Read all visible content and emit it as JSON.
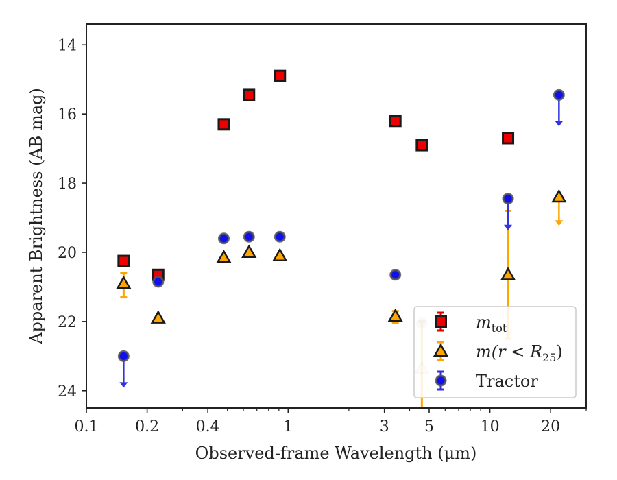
{
  "chart_data": {
    "type": "scatter",
    "title": "",
    "xlabel": "Observed-frame Wavelength (μm)",
    "ylabel": "Apparent Brightness (AB mag)",
    "xscale": "log",
    "xlim": [
      0.1,
      30
    ],
    "ylim": [
      24.5,
      13.4
    ],
    "y_inverted": true,
    "grid": false,
    "legend_position": "lower-right",
    "xticks": [
      {
        "value": 0.1,
        "label": "0.1"
      },
      {
        "value": 0.2,
        "label": "0.2"
      },
      {
        "value": 0.4,
        "label": "0.4"
      },
      {
        "value": 1,
        "label": "1"
      },
      {
        "value": 3,
        "label": "3"
      },
      {
        "value": 5,
        "label": "5"
      },
      {
        "value": 10,
        "label": "10"
      },
      {
        "value": 20,
        "label": "20"
      }
    ],
    "yticks": [
      {
        "value": 14,
        "label": "14"
      },
      {
        "value": 16,
        "label": "16"
      },
      {
        "value": 18,
        "label": "18"
      },
      {
        "value": 20,
        "label": "20"
      },
      {
        "value": 22,
        "label": "22"
      },
      {
        "value": 24,
        "label": "24"
      }
    ],
    "series": [
      {
        "name": "m_tot",
        "legend_label": {
          "base": "m",
          "sub": "tot"
        },
        "marker": "square",
        "fill": "#ee0000",
        "errcolor": "#dd0000",
        "points": [
          {
            "x": 0.153,
            "y": 20.25
          },
          {
            "x": 0.227,
            "y": 20.65
          },
          {
            "x": 0.48,
            "y": 16.3
          },
          {
            "x": 0.64,
            "y": 15.45
          },
          {
            "x": 0.91,
            "y": 14.9
          },
          {
            "x": 3.4,
            "y": 16.2
          },
          {
            "x": 4.6,
            "y": 16.9
          },
          {
            "x": 12.3,
            "y": 16.7
          }
        ]
      },
      {
        "name": "m(r < R25)",
        "legend_label": {
          "base": "m(r < R",
          "sub": "25",
          "suffix": ")"
        },
        "marker": "triangle",
        "fill": "#ffa500",
        "errcolor": "#ffa500",
        "points": [
          {
            "x": 0.153,
            "y": 20.9,
            "err": [
              21.3,
              20.6
            ]
          },
          {
            "x": 0.227,
            "y": 21.9
          },
          {
            "x": 0.48,
            "y": 20.15
          },
          {
            "x": 0.64,
            "y": 20.0
          },
          {
            "x": 0.91,
            "y": 20.1
          },
          {
            "x": 3.4,
            "y": 21.85,
            "err": [
              22.05,
              21.7
            ]
          },
          {
            "x": 4.6,
            "y": 23.35,
            "faded": true,
            "err": [
              24.5,
              22.0
            ]
          },
          {
            "x": 12.3,
            "y": 20.65,
            "err": [
              22.5,
              18.8
            ]
          },
          {
            "x": 22.0,
            "y": 18.4,
            "upper_limit": true
          }
        ]
      },
      {
        "name": "Tractor",
        "legend_label": {
          "base": "Tractor"
        },
        "marker": "circle",
        "fill": "#1010ee",
        "errcolor": "#3030dd",
        "points": [
          {
            "x": 0.153,
            "y": 23.0,
            "upper_limit": true
          },
          {
            "x": 0.227,
            "y": 20.85
          },
          {
            "x": 0.48,
            "y": 19.6
          },
          {
            "x": 0.64,
            "y": 19.55
          },
          {
            "x": 0.91,
            "y": 19.55
          },
          {
            "x": 3.4,
            "y": 20.65
          },
          {
            "x": 4.6,
            "y": 22.05,
            "faded": true
          },
          {
            "x": 12.3,
            "y": 18.45,
            "upper_limit": true
          },
          {
            "x": 22.0,
            "y": 15.45,
            "upper_limit": true
          }
        ]
      }
    ]
  }
}
